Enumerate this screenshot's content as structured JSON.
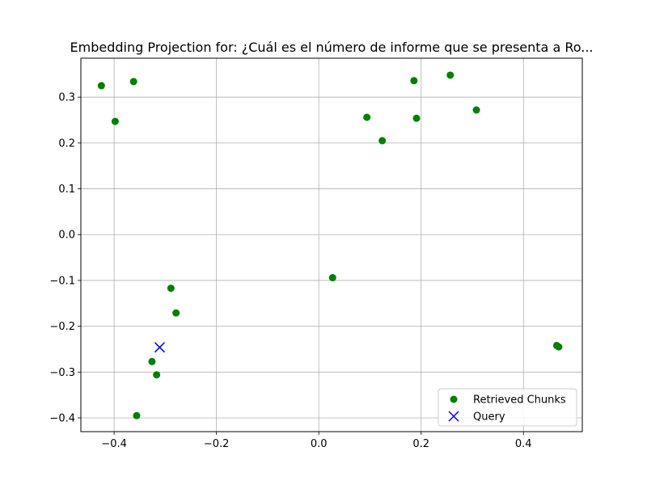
{
  "chart_data": {
    "type": "scatter",
    "title": "Embedding Projection for: ¿Cuál es el número de informe que se presenta a Ro...",
    "xlabel": "",
    "ylabel": "",
    "xlim": [
      -0.465,
      0.515
    ],
    "ylim": [
      -0.43,
      0.385
    ],
    "grid": true,
    "legend_position": "bottom-right",
    "x_ticks": [
      -0.4,
      -0.2,
      0.0,
      0.2,
      0.4
    ],
    "x_tick_labels": [
      "−0.4",
      "−0.2",
      "0.0",
      "0.2",
      "0.4"
    ],
    "y_ticks": [
      0.3,
      0.2,
      0.1,
      0.0,
      -0.1,
      -0.2,
      -0.3,
      -0.4
    ],
    "y_tick_labels": [
      "0.3",
      "0.2",
      "0.1",
      "0.0",
      "−0.1",
      "−0.2",
      "−0.3",
      "−0.4"
    ],
    "series": [
      {
        "name": "Retrieved Chunks",
        "marker": "circle",
        "color": "#008000",
        "points": [
          {
            "x": -0.425,
            "y": 0.325
          },
          {
            "x": -0.362,
            "y": 0.334
          },
          {
            "x": -0.398,
            "y": 0.247
          },
          {
            "x": 0.094,
            "y": 0.256
          },
          {
            "x": 0.124,
            "y": 0.205
          },
          {
            "x": 0.186,
            "y": 0.336
          },
          {
            "x": 0.191,
            "y": 0.254
          },
          {
            "x": 0.257,
            "y": 0.348
          },
          {
            "x": 0.308,
            "y": 0.272
          },
          {
            "x": 0.027,
            "y": -0.094
          },
          {
            "x": -0.289,
            "y": -0.117
          },
          {
            "x": -0.279,
            "y": -0.171
          },
          {
            "x": -0.326,
            "y": -0.277
          },
          {
            "x": -0.317,
            "y": -0.306
          },
          {
            "x": -0.356,
            "y": -0.395
          },
          {
            "x": 0.465,
            "y": -0.242
          },
          {
            "x": 0.469,
            "y": -0.245
          }
        ]
      },
      {
        "name": "Query",
        "marker": "x",
        "color": "#0000ff",
        "points": [
          {
            "x": -0.311,
            "y": -0.246
          }
        ]
      }
    ]
  }
}
